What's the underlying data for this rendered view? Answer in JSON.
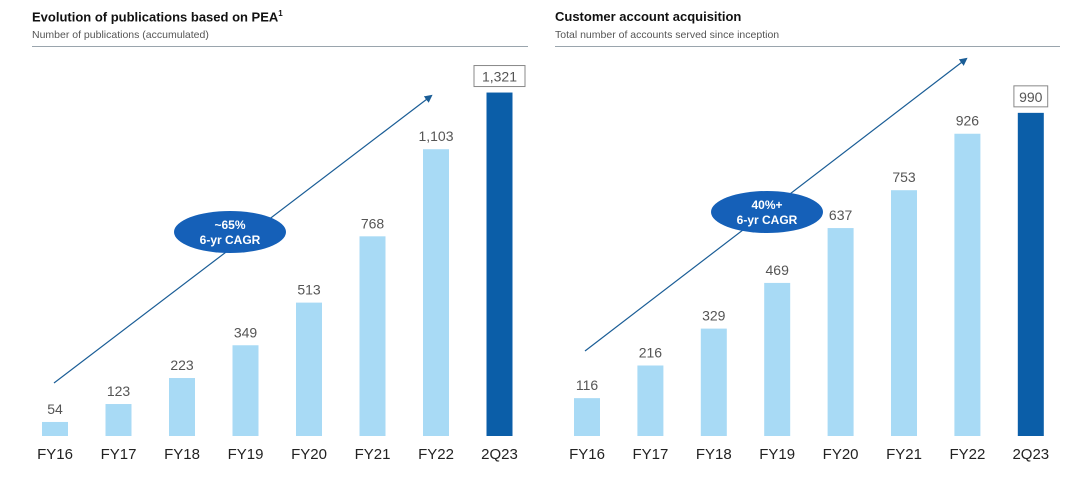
{
  "chart_data": [
    {
      "type": "bar",
      "title": "Evolution of publications based on PEA",
      "title_footnote": "1",
      "subtitle": "Number of publications (accumulated)",
      "categories": [
        "FY16",
        "FY17",
        "FY18",
        "FY19",
        "FY20",
        "FY21",
        "FY22",
        "2Q23"
      ],
      "values": [
        54,
        123,
        223,
        349,
        513,
        768,
        1103,
        1321
      ],
      "value_labels": [
        "54",
        "123",
        "223",
        "349",
        "513",
        "768",
        "1,103",
        "1,321"
      ],
      "ylim": [
        0,
        1400
      ],
      "annotation": {
        "line1": "~65%",
        "line2": "6-yr CAGR"
      },
      "colors": {
        "bar": "#a8daf5",
        "highlight_bar": "#0b5ea8",
        "badge": "#1560b8",
        "arrow": "#1a5d96"
      },
      "grid": false
    },
    {
      "type": "bar",
      "title": "Customer account acquisition",
      "subtitle": "Total number of accounts served since inception",
      "categories": [
        "FY16",
        "FY17",
        "FY18",
        "FY19",
        "FY20",
        "FY21",
        "FY22",
        "2Q23"
      ],
      "values": [
        116,
        216,
        329,
        469,
        637,
        753,
        926,
        990
      ],
      "value_labels": [
        "116",
        "216",
        "329",
        "469",
        "637",
        "753",
        "926",
        "990"
      ],
      "ylim": [
        0,
        1060
      ],
      "annotation": {
        "line1": "40%+",
        "line2": "6-yr CAGR"
      },
      "colors": {
        "bar": "#a8daf5",
        "highlight_bar": "#0b5ea8",
        "badge": "#1560b8",
        "arrow": "#1a5d96"
      },
      "grid": false
    }
  ]
}
